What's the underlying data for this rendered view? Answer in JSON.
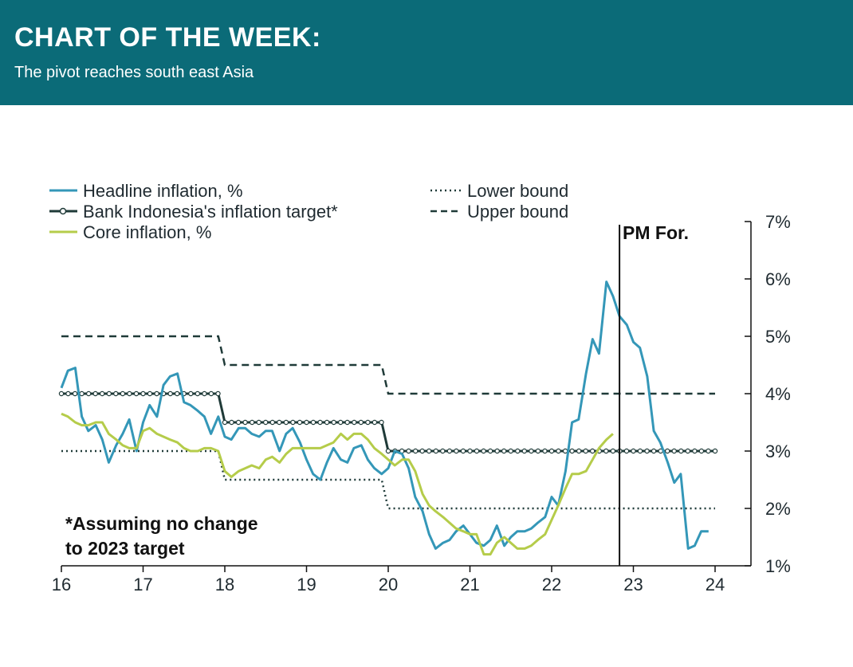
{
  "header": {
    "title": "CHART OF THE WEEK:",
    "subtitle": "The pivot reaches south east Asia"
  },
  "colors": {
    "header_bg": "#0b6b78",
    "headline": "#3497b8",
    "target": "#1f3a38",
    "core": "#b5cc4a",
    "bounds": "#1f3a38"
  },
  "chart_data": {
    "type": "line",
    "x_axis": {
      "min": 2016,
      "max": 2024.4,
      "ticks": [
        2016,
        2017,
        2018,
        2019,
        2020,
        2021,
        2022,
        2023,
        2024
      ],
      "tick_labels": [
        "16",
        "17",
        "18",
        "19",
        "20",
        "21",
        "22",
        "23",
        "24"
      ]
    },
    "y_axis": {
      "min": 1,
      "max": 7,
      "position": "right",
      "ticks": [
        1,
        2,
        3,
        4,
        5,
        6,
        7
      ],
      "tick_labels": [
        "1%",
        "2%",
        "3%",
        "4%",
        "5%",
        "6%",
        "7%"
      ]
    },
    "legend": [
      {
        "key": "headline",
        "label": "Headline inflation, %"
      },
      {
        "key": "target",
        "label": "Bank Indonesia's inflation target*"
      },
      {
        "key": "core",
        "label": "Core inflation, %"
      },
      {
        "key": "lower",
        "label": "Lower bound"
      },
      {
        "key": "upper",
        "label": "Upper bound"
      }
    ],
    "forecast_line": {
      "x": 2022.83,
      "label": "PM For."
    },
    "annotation": [
      "*Assuming no change",
      "to 2023 target"
    ],
    "series": {
      "headline": [
        [
          2016.0,
          4.1
        ],
        [
          2016.08,
          4.4
        ],
        [
          2016.17,
          4.45
        ],
        [
          2016.25,
          3.6
        ],
        [
          2016.33,
          3.35
        ],
        [
          2016.42,
          3.45
        ],
        [
          2016.5,
          3.2
        ],
        [
          2016.58,
          2.8
        ],
        [
          2016.67,
          3.1
        ],
        [
          2016.75,
          3.3
        ],
        [
          2016.83,
          3.55
        ],
        [
          2016.92,
          3.0
        ],
        [
          2017.0,
          3.5
        ],
        [
          2017.08,
          3.8
        ],
        [
          2017.17,
          3.6
        ],
        [
          2017.25,
          4.15
        ],
        [
          2017.33,
          4.3
        ],
        [
          2017.42,
          4.35
        ],
        [
          2017.5,
          3.85
        ],
        [
          2017.58,
          3.8
        ],
        [
          2017.67,
          3.7
        ],
        [
          2017.75,
          3.6
        ],
        [
          2017.83,
          3.3
        ],
        [
          2017.92,
          3.6
        ],
        [
          2018.0,
          3.25
        ],
        [
          2018.08,
          3.2
        ],
        [
          2018.17,
          3.4
        ],
        [
          2018.25,
          3.4
        ],
        [
          2018.33,
          3.3
        ],
        [
          2018.42,
          3.25
        ],
        [
          2018.5,
          3.35
        ],
        [
          2018.58,
          3.35
        ],
        [
          2018.67,
          3.0
        ],
        [
          2018.75,
          3.3
        ],
        [
          2018.83,
          3.4
        ],
        [
          2018.92,
          3.15
        ],
        [
          2019.0,
          2.85
        ],
        [
          2019.08,
          2.6
        ],
        [
          2019.17,
          2.5
        ],
        [
          2019.25,
          2.8
        ],
        [
          2019.33,
          3.05
        ],
        [
          2019.42,
          2.85
        ],
        [
          2019.5,
          2.8
        ],
        [
          2019.58,
          3.05
        ],
        [
          2019.67,
          3.1
        ],
        [
          2019.75,
          2.85
        ],
        [
          2019.83,
          2.7
        ],
        [
          2019.92,
          2.6
        ],
        [
          2020.0,
          2.7
        ],
        [
          2020.08,
          3.0
        ],
        [
          2020.17,
          2.95
        ],
        [
          2020.25,
          2.7
        ],
        [
          2020.33,
          2.2
        ],
        [
          2020.42,
          1.95
        ],
        [
          2020.5,
          1.55
        ],
        [
          2020.58,
          1.3
        ],
        [
          2020.67,
          1.4
        ],
        [
          2020.75,
          1.45
        ],
        [
          2020.83,
          1.6
        ],
        [
          2020.92,
          1.7
        ],
        [
          2021.0,
          1.55
        ],
        [
          2021.08,
          1.4
        ],
        [
          2021.17,
          1.35
        ],
        [
          2021.25,
          1.45
        ],
        [
          2021.33,
          1.7
        ],
        [
          2021.42,
          1.35
        ],
        [
          2021.5,
          1.5
        ],
        [
          2021.58,
          1.6
        ],
        [
          2021.67,
          1.6
        ],
        [
          2021.75,
          1.65
        ],
        [
          2021.83,
          1.75
        ],
        [
          2021.92,
          1.85
        ],
        [
          2022.0,
          2.2
        ],
        [
          2022.08,
          2.05
        ],
        [
          2022.17,
          2.65
        ],
        [
          2022.25,
          3.5
        ],
        [
          2022.33,
          3.55
        ],
        [
          2022.42,
          4.35
        ],
        [
          2022.5,
          4.95
        ],
        [
          2022.58,
          4.7
        ],
        [
          2022.67,
          5.95
        ],
        [
          2022.75,
          5.7
        ],
        [
          2022.83,
          5.35
        ],
        [
          2022.92,
          5.2
        ],
        [
          2023.0,
          4.9
        ],
        [
          2023.08,
          4.8
        ],
        [
          2023.17,
          4.3
        ],
        [
          2023.25,
          3.35
        ],
        [
          2023.33,
          3.15
        ],
        [
          2023.42,
          2.8
        ],
        [
          2023.5,
          2.45
        ],
        [
          2023.58,
          2.6
        ],
        [
          2023.67,
          1.3
        ],
        [
          2023.75,
          1.35
        ],
        [
          2023.83,
          1.6
        ],
        [
          2023.92,
          1.6
        ]
      ],
      "core": [
        [
          2016.0,
          3.65
        ],
        [
          2016.08,
          3.6
        ],
        [
          2016.17,
          3.5
        ],
        [
          2016.25,
          3.45
        ],
        [
          2016.33,
          3.45
        ],
        [
          2016.42,
          3.5
        ],
        [
          2016.5,
          3.5
        ],
        [
          2016.58,
          3.3
        ],
        [
          2016.67,
          3.2
        ],
        [
          2016.75,
          3.1
        ],
        [
          2016.83,
          3.05
        ],
        [
          2016.92,
          3.05
        ],
        [
          2017.0,
          3.35
        ],
        [
          2017.08,
          3.4
        ],
        [
          2017.17,
          3.3
        ],
        [
          2017.25,
          3.25
        ],
        [
          2017.33,
          3.2
        ],
        [
          2017.42,
          3.15
        ],
        [
          2017.5,
          3.05
        ],
        [
          2017.58,
          3.0
        ],
        [
          2017.67,
          3.0
        ],
        [
          2017.75,
          3.05
        ],
        [
          2017.83,
          3.05
        ],
        [
          2017.92,
          3.0
        ],
        [
          2018.0,
          2.65
        ],
        [
          2018.08,
          2.55
        ],
        [
          2018.17,
          2.65
        ],
        [
          2018.25,
          2.7
        ],
        [
          2018.33,
          2.75
        ],
        [
          2018.42,
          2.7
        ],
        [
          2018.5,
          2.85
        ],
        [
          2018.58,
          2.9
        ],
        [
          2018.67,
          2.8
        ],
        [
          2018.75,
          2.95
        ],
        [
          2018.83,
          3.05
        ],
        [
          2018.92,
          3.05
        ],
        [
          2019.0,
          3.05
        ],
        [
          2019.08,
          3.05
        ],
        [
          2019.17,
          3.05
        ],
        [
          2019.25,
          3.1
        ],
        [
          2019.33,
          3.15
        ],
        [
          2019.42,
          3.3
        ],
        [
          2019.5,
          3.2
        ],
        [
          2019.58,
          3.3
        ],
        [
          2019.67,
          3.3
        ],
        [
          2019.75,
          3.2
        ],
        [
          2019.83,
          3.05
        ],
        [
          2019.92,
          2.95
        ],
        [
          2020.0,
          2.85
        ],
        [
          2020.08,
          2.75
        ],
        [
          2020.17,
          2.85
        ],
        [
          2020.25,
          2.85
        ],
        [
          2020.33,
          2.65
        ],
        [
          2020.42,
          2.25
        ],
        [
          2020.5,
          2.05
        ],
        [
          2020.58,
          1.95
        ],
        [
          2020.67,
          1.85
        ],
        [
          2020.75,
          1.75
        ],
        [
          2020.83,
          1.65
        ],
        [
          2020.92,
          1.6
        ],
        [
          2021.0,
          1.55
        ],
        [
          2021.08,
          1.55
        ],
        [
          2021.17,
          1.2
        ],
        [
          2021.25,
          1.2
        ],
        [
          2021.33,
          1.4
        ],
        [
          2021.42,
          1.5
        ],
        [
          2021.5,
          1.4
        ],
        [
          2021.58,
          1.3
        ],
        [
          2021.67,
          1.3
        ],
        [
          2021.75,
          1.35
        ],
        [
          2021.83,
          1.45
        ],
        [
          2021.92,
          1.55
        ],
        [
          2022.0,
          1.8
        ],
        [
          2022.08,
          2.05
        ],
        [
          2022.17,
          2.35
        ],
        [
          2022.25,
          2.6
        ],
        [
          2022.33,
          2.6
        ],
        [
          2022.42,
          2.65
        ],
        [
          2022.5,
          2.85
        ],
        [
          2022.58,
          3.05
        ],
        [
          2022.67,
          3.2
        ],
        [
          2022.75,
          3.3
        ]
      ],
      "target": [
        [
          2016.0,
          4
        ],
        [
          2017.92,
          4
        ],
        [
          2018.0,
          3.5
        ],
        [
          2019.92,
          3.5
        ],
        [
          2020.0,
          3
        ],
        [
          2024.0,
          3
        ]
      ],
      "lower": [
        [
          2016.0,
          3
        ],
        [
          2017.92,
          3
        ],
        [
          2018.0,
          2.5
        ],
        [
          2019.92,
          2.5
        ],
        [
          2020.0,
          2
        ],
        [
          2024.0,
          2
        ]
      ],
      "upper": [
        [
          2016.0,
          5
        ],
        [
          2017.92,
          5
        ],
        [
          2018.0,
          4.5
        ],
        [
          2019.92,
          4.5
        ],
        [
          2020.0,
          4
        ],
        [
          2024.0,
          4
        ]
      ]
    }
  }
}
